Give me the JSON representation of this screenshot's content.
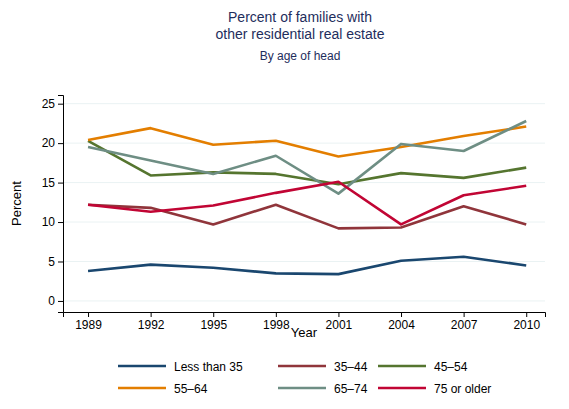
{
  "chart_data": {
    "type": "line",
    "title": "Percent of families with other residential real estate",
    "subtitle": "By age of head",
    "x_label": "Year",
    "y_label": "Percent",
    "x": [
      1989,
      1992,
      1995,
      1998,
      2001,
      2004,
      2007,
      2010
    ],
    "xlim": [
      1987.8,
      2010.9
    ],
    "xticks": [
      1989,
      1992,
      1995,
      1998,
      2001,
      2004,
      2007,
      2010
    ],
    "ylim": [
      -1.4,
      26.1
    ],
    "yticks": [
      0,
      5,
      10,
      15,
      20,
      25
    ],
    "grid": true,
    "legend": "bottom",
    "series": [
      {
        "name": "Less than 35",
        "color": "#1a476f",
        "values": [
          3.8,
          4.6,
          4.2,
          3.5,
          3.4,
          5.1,
          5.6,
          4.5
        ]
      },
      {
        "name": "35–44",
        "color": "#90353b",
        "values": [
          12.2,
          11.8,
          9.7,
          12.2,
          9.2,
          9.3,
          12.0,
          9.7
        ]
      },
      {
        "name": "45–54",
        "color": "#55752f",
        "values": [
          20.3,
          15.9,
          16.3,
          16.1,
          14.8,
          16.2,
          15.6,
          16.9
        ]
      },
      {
        "name": "55–64",
        "color": "#e37e00",
        "values": [
          20.4,
          21.9,
          19.8,
          20.3,
          18.3,
          19.5,
          20.9,
          22.1
        ]
      },
      {
        "name": "65–74",
        "color": "#6e8e84",
        "values": [
          19.5,
          17.8,
          16.1,
          18.4,
          13.6,
          19.9,
          19.0,
          22.8
        ]
      },
      {
        "name": "75 or older",
        "color": "#c10534",
        "values": [
          12.2,
          11.3,
          12.1,
          13.7,
          15.1,
          9.7,
          13.4,
          14.6
        ]
      }
    ]
  }
}
